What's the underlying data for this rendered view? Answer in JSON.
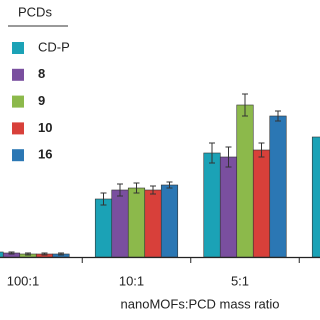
{
  "chart_data": {
    "type": "bar",
    "x_label": "nanoMOFs:PCD mass ratio",
    "legend_title": "PCDs",
    "categories": [
      "100:1",
      "10:1",
      "5:1",
      null
    ],
    "ylim": [
      0,
      200
    ],
    "series": [
      {
        "name": "CD-P",
        "color": "#1ba2b6",
        "values": [
          5,
          58,
          104,
          120
        ],
        "errors": [
          1,
          6,
          10,
          null
        ]
      },
      {
        "name": "8",
        "color": "#7a4f9f",
        "values": [
          4,
          67,
          100,
          null
        ],
        "errors": [
          1,
          6,
          10,
          null
        ]
      },
      {
        "name": "9",
        "color": "#8cb94b",
        "values": [
          3,
          69,
          152,
          null
        ],
        "errors": [
          1,
          5,
          11,
          null
        ]
      },
      {
        "name": "10",
        "color": "#d8403a",
        "values": [
          3,
          67,
          107,
          null
        ],
        "errors": [
          1,
          4,
          7,
          null
        ]
      },
      {
        "name": "16",
        "color": "#2b77b4",
        "values": [
          3,
          72,
          141,
          null
        ],
        "errors": [
          1,
          3,
          5,
          null
        ]
      }
    ]
  }
}
